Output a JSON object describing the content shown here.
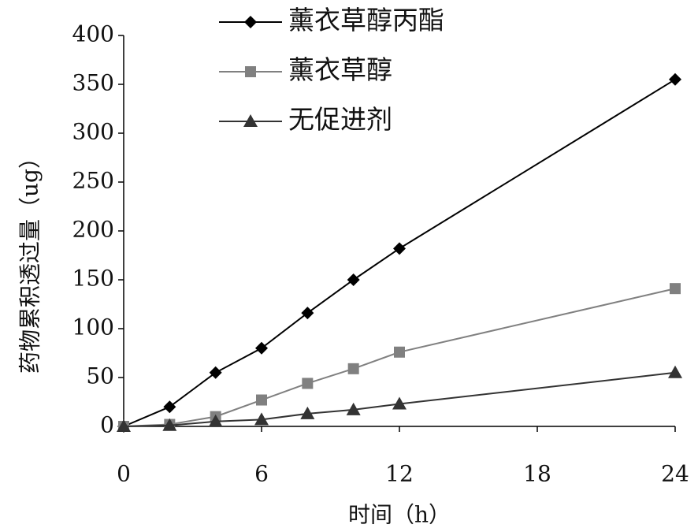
{
  "chart_data": {
    "type": "line",
    "x_label": "时间（h）",
    "y_label": "药物累积透过量（ug）",
    "x": [
      0,
      2,
      4,
      6,
      8,
      10,
      12,
      24
    ],
    "xlim": [
      0,
      24
    ],
    "xticks": [
      0,
      6,
      12,
      18,
      24
    ],
    "ylim": [
      0,
      400
    ],
    "yticks": [
      0,
      50,
      100,
      150,
      200,
      250,
      300,
      350,
      400
    ],
    "grid": false,
    "legend": "top",
    "series": [
      {
        "name": "薰衣草醇丙酯",
        "color": "#000000",
        "marker": "diamond",
        "values": [
          0,
          20,
          55,
          80,
          116,
          150,
          182,
          355
        ]
      },
      {
        "name": "薰衣草醇",
        "color": "#808080",
        "marker": "square",
        "values": [
          0,
          2,
          10,
          27,
          44,
          59,
          76,
          141
        ]
      },
      {
        "name": "无促进剂",
        "color": "#333333",
        "marker": "triangle",
        "values": [
          0,
          1,
          5,
          7,
          13,
          17,
          23,
          55
        ]
      }
    ]
  }
}
